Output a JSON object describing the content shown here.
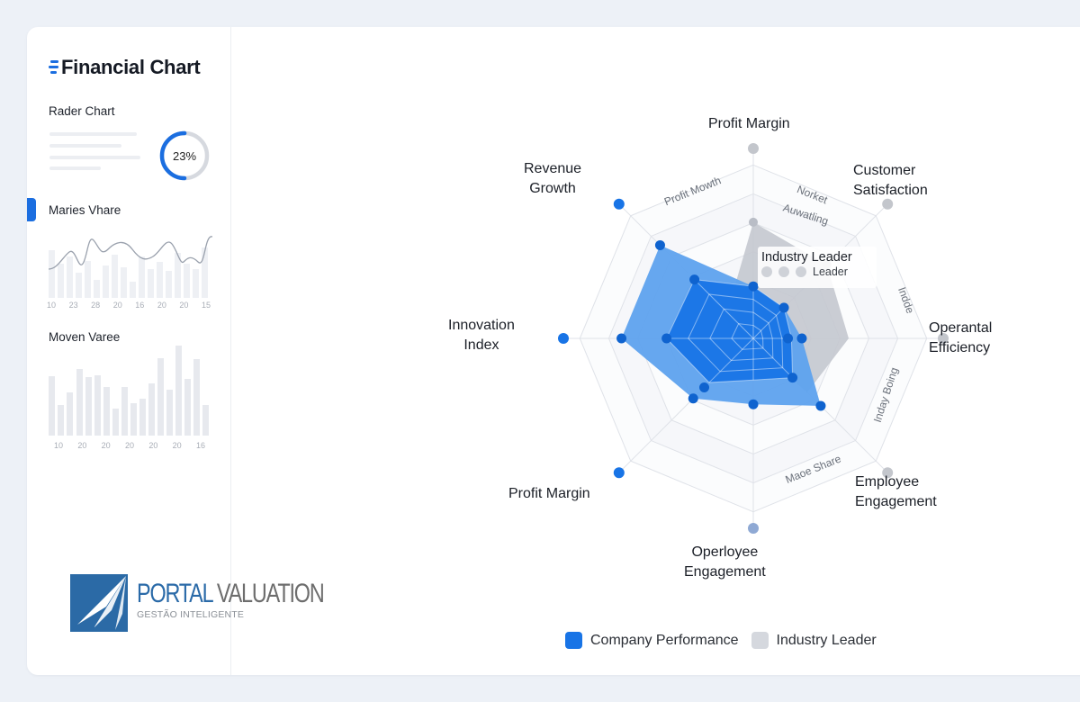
{
  "sidebar": {
    "brand": {
      "title": "Financial Chart",
      "icon": "stacked-bars-logo-icon"
    },
    "sections": [
      {
        "title": "Rader Chart",
        "donut_label": "23%",
        "donut_percent": 50
      },
      {
        "title": "Maries Vhare",
        "active": true,
        "ticks": [
          "10",
          "23",
          "28",
          "20",
          "16",
          "20",
          "20",
          "15"
        ]
      },
      {
        "title": "Moven Varee",
        "ticks": [
          "10",
          "20",
          "20",
          "20",
          "20",
          "20",
          "16"
        ]
      }
    ],
    "logo": {
      "title_part1": "PORTAL",
      "title_part2": "VALUATION",
      "subtitle": "GESTÃO INTELIGENTE"
    }
  },
  "colors": {
    "company": "#1874e6",
    "company_light": "#5ea2ee",
    "industry": "#c4c8cf",
    "grid": "#dfe2e8",
    "band": "#f3f5f8",
    "accent": "#1b6ee0"
  },
  "tooltip": {
    "title": "Industry Leader",
    "row_label": "Leader"
  },
  "legend": {
    "items": [
      {
        "label": "Company Performance"
      },
      {
        "label": "Industry Leader"
      }
    ]
  },
  "chart_data": {
    "type": "radar",
    "title": "",
    "axes": [
      "Profit Margin",
      "Customer Satisfaction",
      "Operantal Efficiency",
      "Employee Engagement",
      "Operloyee Engagement",
      "Profit Margin",
      "Innovation Index",
      "Revenue Growth"
    ],
    "range": [
      0,
      100
    ],
    "rings": 6,
    "series": [
      {
        "name": "Company Performance",
        "values": [
          30,
          25,
          28,
          55,
          38,
          49,
          76,
          76
        ]
      },
      {
        "name": "Industry Leader",
        "values": [
          67,
          60,
          55,
          44,
          0,
          0,
          0,
          0
        ]
      }
    ],
    "inner_company_points": [
      {
        "axis": "Revenue Growth",
        "value": 48
      },
      {
        "axis": "Innovation Index",
        "value": 50
      },
      {
        "axis": "Operantal Efficiency",
        "value": 20
      },
      {
        "axis": "Operloyee Engagement",
        "value": 0
      },
      {
        "axis": "Profit Margin",
        "value": 40
      }
    ],
    "ring_annotations": [
      "Profit Mowth",
      "Norket",
      "Auwatling",
      "Indde",
      "Inday Boing",
      "Maoe Share"
    ],
    "legend_position": "bottom",
    "grid": true
  },
  "mini_charts": [
    {
      "type": "line+bar",
      "line": [
        40,
        60,
        35,
        85,
        65,
        75,
        72,
        60,
        58,
        70,
        75,
        45,
        50,
        45,
        88
      ],
      "bars": [
        65,
        55,
        70,
        40,
        62,
        50,
        55,
        30,
        45,
        60,
        40,
        50,
        65,
        48,
        55,
        60,
        52,
        70,
        45,
        75
      ]
    },
    {
      "type": "bar",
      "bars": [
        65,
        32,
        45,
        72,
        63,
        65,
        53,
        30,
        53,
        35,
        42,
        55,
        80,
        48,
        95,
        60,
        85,
        35
      ]
    }
  ]
}
